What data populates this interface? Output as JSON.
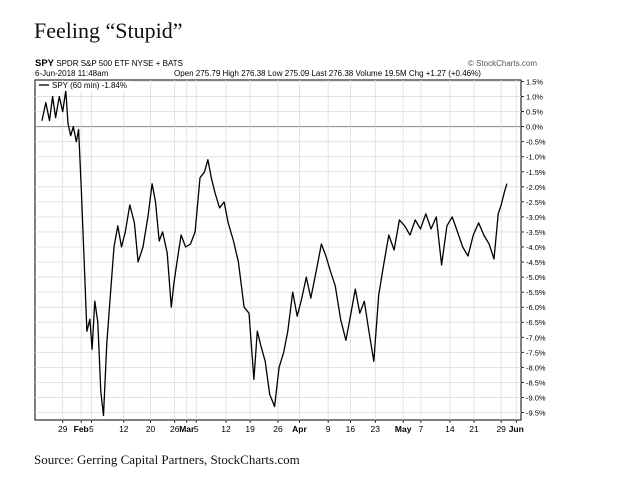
{
  "figure": {
    "title": "Feeling “Stupid”",
    "source": "Source: Gerring Capital Partners, StockCharts.com"
  },
  "header": {
    "symbol": "SPY",
    "name": "SPDR S&P 500 ETF",
    "exchange": "NYSE + BATS",
    "watermark": "© StockCharts.com",
    "datetime": "6-Jun-2018 11:48am",
    "quote": "Open 275.79  High 276.38  Low 275.09  Last 276.38  Volume 19.5M  Chg +1.27 (+0.46%)",
    "legend_label": "SPY (60 min) -1.84%"
  },
  "chart_data": {
    "type": "line",
    "title": "",
    "xlabel": "",
    "ylabel": "",
    "ylim": [
      -9.75,
      1.55
    ],
    "y_ticks": [
      "1.5%",
      "1.0%",
      "0.5%",
      "0.0%",
      "-0.5%",
      "-1.0%",
      "-1.5%",
      "-2.0%",
      "-2.5%",
      "-3.0%",
      "-3.5%",
      "-4.0%",
      "-4.5%",
      "-5.0%",
      "-5.5%",
      "-6.0%",
      "-6.5%",
      "-7.0%",
      "-7.5%",
      "-8.0%",
      "-8.5%",
      "-9.0%",
      "-9.5%"
    ],
    "y_tick_values": [
      1.5,
      1.0,
      0.5,
      0.0,
      -0.5,
      -1.0,
      -1.5,
      -2.0,
      -2.5,
      -3.0,
      -3.5,
      -4.0,
      -4.5,
      -5.0,
      -5.5,
      -6.0,
      -6.5,
      -7.0,
      -7.5,
      -8.0,
      -8.5,
      -9.0,
      -9.5
    ],
    "x_ticks": [
      {
        "label": "29",
        "t": 0.055,
        "bold": false
      },
      {
        "label": "Feb",
        "t": 0.104,
        "bold": true
      },
      {
        "label": "5",
        "t": 0.131,
        "bold": false
      },
      {
        "label": "12",
        "t": 0.217,
        "bold": false
      },
      {
        "label": "20",
        "t": 0.288,
        "bold": false
      },
      {
        "label": "26",
        "t": 0.352,
        "bold": false
      },
      {
        "label": "Mar",
        "t": 0.384,
        "bold": true
      },
      {
        "label": "5",
        "t": 0.409,
        "bold": false
      },
      {
        "label": "12",
        "t": 0.488,
        "bold": false
      },
      {
        "label": "19",
        "t": 0.552,
        "bold": false
      },
      {
        "label": "26",
        "t": 0.626,
        "bold": false
      },
      {
        "label": "Apr",
        "t": 0.683,
        "bold": true
      },
      {
        "label": "9",
        "t": 0.759,
        "bold": false
      },
      {
        "label": "16",
        "t": 0.818,
        "bold": false
      },
      {
        "label": "23",
        "t": 0.884,
        "bold": false
      },
      {
        "label": "May",
        "t": 0.958,
        "bold": true
      },
      {
        "label": "7",
        "t": 1.005,
        "bold": false
      },
      {
        "label": "14",
        "t": 1.082,
        "bold": false
      },
      {
        "label": "21",
        "t": 1.146,
        "bold": false
      },
      {
        "label": "29",
        "t": 1.218,
        "bold": false
      },
      {
        "label": "Jun",
        "t": 1.258,
        "bold": true
      }
    ],
    "grid": true,
    "legend": "top-left",
    "series": [
      {
        "name": "SPY (60 min) -1.84%",
        "points": [
          [
            0.0,
            0.2
          ],
          [
            0.01,
            0.8
          ],
          [
            0.02,
            0.2
          ],
          [
            0.028,
            1.0
          ],
          [
            0.036,
            0.3
          ],
          [
            0.046,
            1.0
          ],
          [
            0.055,
            0.5
          ],
          [
            0.063,
            1.2
          ],
          [
            0.069,
            0.1
          ],
          [
            0.076,
            -0.3
          ],
          [
            0.083,
            0.0
          ],
          [
            0.091,
            -0.5
          ],
          [
            0.097,
            -0.1
          ],
          [
            0.104,
            -2.0
          ],
          [
            0.112,
            -4.5
          ],
          [
            0.119,
            -6.8
          ],
          [
            0.127,
            -6.4
          ],
          [
            0.133,
            -7.4
          ],
          [
            0.14,
            -5.8
          ],
          [
            0.148,
            -6.5
          ],
          [
            0.156,
            -8.8
          ],
          [
            0.163,
            -9.6
          ],
          [
            0.172,
            -7.2
          ],
          [
            0.182,
            -5.5
          ],
          [
            0.191,
            -4.0
          ],
          [
            0.201,
            -3.3
          ],
          [
            0.211,
            -4.0
          ],
          [
            0.221,
            -3.5
          ],
          [
            0.233,
            -2.6
          ],
          [
            0.245,
            -3.2
          ],
          [
            0.255,
            -4.5
          ],
          [
            0.268,
            -4.0
          ],
          [
            0.281,
            -3.0
          ],
          [
            0.292,
            -1.9
          ],
          [
            0.301,
            -2.5
          ],
          [
            0.311,
            -3.8
          ],
          [
            0.32,
            -3.5
          ],
          [
            0.332,
            -4.2
          ],
          [
            0.343,
            -6.0
          ],
          [
            0.35,
            -5.2
          ],
          [
            0.358,
            -4.5
          ],
          [
            0.369,
            -3.6
          ],
          [
            0.381,
            -4.0
          ],
          [
            0.394,
            -3.9
          ],
          [
            0.406,
            -3.5
          ],
          [
            0.419,
            -1.7
          ],
          [
            0.431,
            -1.5
          ],
          [
            0.44,
            -1.1
          ],
          [
            0.449,
            -1.7
          ],
          [
            0.459,
            -2.2
          ],
          [
            0.471,
            -2.7
          ],
          [
            0.483,
            -2.5
          ],
          [
            0.494,
            -3.2
          ],
          [
            0.508,
            -3.8
          ],
          [
            0.521,
            -4.5
          ],
          [
            0.536,
            -6.0
          ],
          [
            0.549,
            -6.2
          ],
          [
            0.562,
            -8.4
          ],
          [
            0.571,
            -6.8
          ],
          [
            0.581,
            -7.3
          ],
          [
            0.592,
            -7.8
          ],
          [
            0.604,
            -8.9
          ],
          [
            0.617,
            -9.3
          ],
          [
            0.629,
            -8.0
          ],
          [
            0.641,
            -7.5
          ],
          [
            0.652,
            -6.8
          ],
          [
            0.665,
            -5.5
          ],
          [
            0.677,
            -6.3
          ],
          [
            0.689,
            -5.7
          ],
          [
            0.701,
            -5.0
          ],
          [
            0.713,
            -5.7
          ],
          [
            0.729,
            -4.7
          ],
          [
            0.741,
            -3.9
          ],
          [
            0.753,
            -4.3
          ],
          [
            0.765,
            -4.8
          ],
          [
            0.778,
            -5.3
          ],
          [
            0.792,
            -6.4
          ],
          [
            0.806,
            -7.1
          ],
          [
            0.818,
            -6.3
          ],
          [
            0.831,
            -5.4
          ],
          [
            0.843,
            -6.2
          ],
          [
            0.855,
            -5.8
          ],
          [
            0.867,
            -6.8
          ],
          [
            0.88,
            -7.8
          ],
          [
            0.893,
            -5.6
          ],
          [
            0.906,
            -4.6
          ],
          [
            0.92,
            -3.6
          ],
          [
            0.934,
            -4.1
          ],
          [
            0.948,
            -3.1
          ],
          [
            0.962,
            -3.3
          ],
          [
            0.976,
            -3.6
          ],
          [
            0.99,
            -3.1
          ],
          [
            1.004,
            -3.4
          ],
          [
            1.018,
            -2.9
          ],
          [
            1.032,
            -3.4
          ],
          [
            1.046,
            -3.0
          ],
          [
            1.06,
            -4.6
          ],
          [
            1.074,
            -3.3
          ],
          [
            1.088,
            -3.0
          ],
          [
            1.102,
            -3.5
          ],
          [
            1.116,
            -4.0
          ],
          [
            1.13,
            -4.3
          ],
          [
            1.144,
            -3.6
          ],
          [
            1.158,
            -3.2
          ],
          [
            1.172,
            -3.6
          ],
          [
            1.186,
            -3.9
          ],
          [
            1.199,
            -4.4
          ],
          [
            1.21,
            -2.9
          ],
          [
            1.218,
            -2.6
          ],
          [
            1.226,
            -2.2
          ],
          [
            1.233,
            -1.9
          ]
        ]
      }
    ]
  }
}
